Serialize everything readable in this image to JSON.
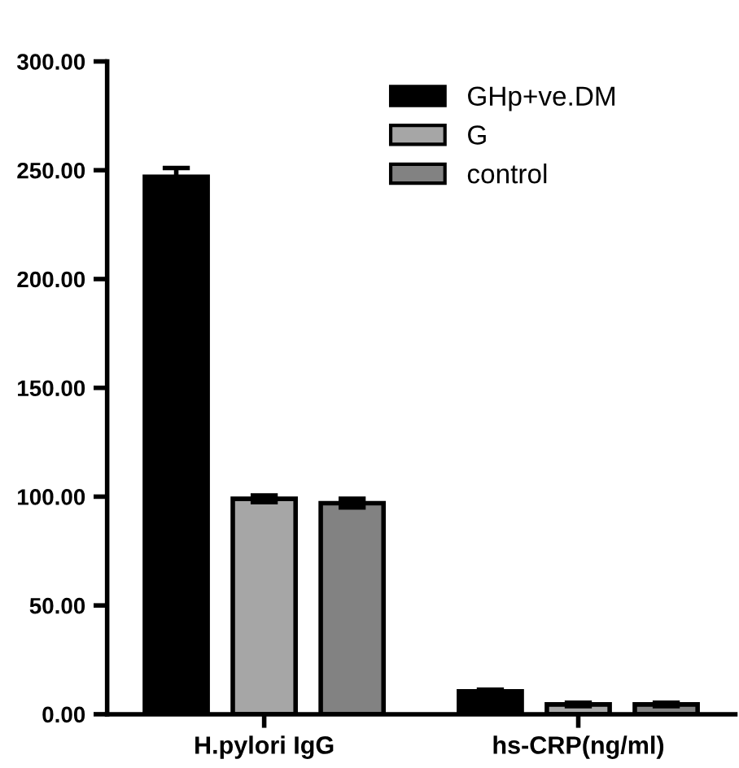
{
  "chart_data": {
    "type": "bar",
    "categories": [
      "H.pylori IgG",
      "hs-CRP(ng/ml)"
    ],
    "series": [
      {
        "name": "GHp+ve.DM",
        "color": "#000000",
        "values": [
          247,
          10.5
        ],
        "errors": [
          4,
          0.8
        ]
      },
      {
        "name": "G",
        "color": "#a6a6a6",
        "values": [
          99,
          4.5
        ],
        "errors": [
          1.5,
          0.8
        ]
      },
      {
        "name": "control",
        "color": "#828282",
        "values": [
          97,
          4.5
        ],
        "errors": [
          2,
          0.8
        ]
      }
    ],
    "ylim": [
      0,
      300
    ],
    "yticks": [
      {
        "value": 0,
        "label": "0.00"
      },
      {
        "value": 50,
        "label": "50.00"
      },
      {
        "value": 100,
        "label": "100.00"
      },
      {
        "value": 150,
        "label": "150.00"
      },
      {
        "value": 200,
        "label": "200.00"
      },
      {
        "value": 250,
        "label": "250.00"
      },
      {
        "value": 300,
        "label": "300.00"
      }
    ],
    "grid": false,
    "legend": "top right"
  }
}
